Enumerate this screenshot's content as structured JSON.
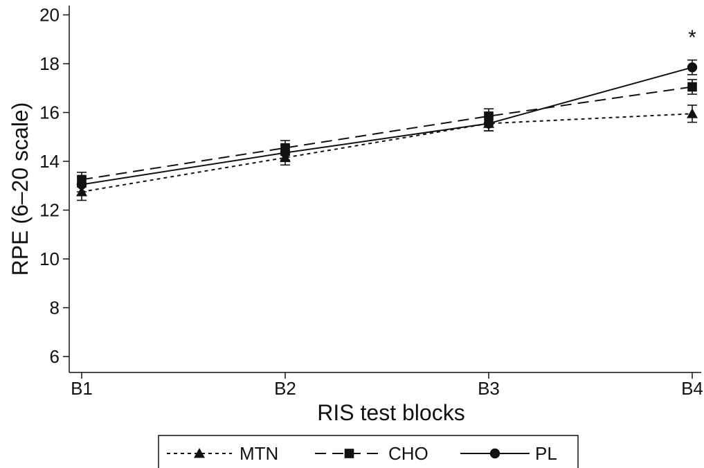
{
  "chart_data": {
    "type": "line",
    "title": "",
    "xlabel": "RIS test blocks",
    "ylabel": "RPE (6–20 scale)",
    "categories": [
      "B1",
      "B2",
      "B3",
      "B4"
    ],
    "ylim": [
      5.5,
      20.3
    ],
    "yticks": [
      6,
      8,
      10,
      12,
      14,
      16,
      18,
      20
    ],
    "grid": false,
    "legend_position": "bottom",
    "series": [
      {
        "name": "MTN",
        "marker": "triangle",
        "dash": "dotted",
        "values": [
          12.75,
          14.15,
          15.55,
          15.95
        ],
        "errors": [
          0.35,
          0.3,
          0.3,
          0.35
        ]
      },
      {
        "name": "CHO",
        "marker": "square",
        "dash": "dashed",
        "values": [
          13.25,
          14.55,
          15.85,
          17.05
        ],
        "errors": [
          0.3,
          0.3,
          0.3,
          0.3
        ]
      },
      {
        "name": "PL",
        "marker": "circle",
        "dash": "solid",
        "values": [
          13.05,
          14.35,
          15.55,
          17.85
        ],
        "errors": [
          0.3,
          0.3,
          0.3,
          0.3
        ]
      }
    ],
    "annotations": [
      {
        "text": "*",
        "category": "B4",
        "y": 19.3
      }
    ]
  }
}
